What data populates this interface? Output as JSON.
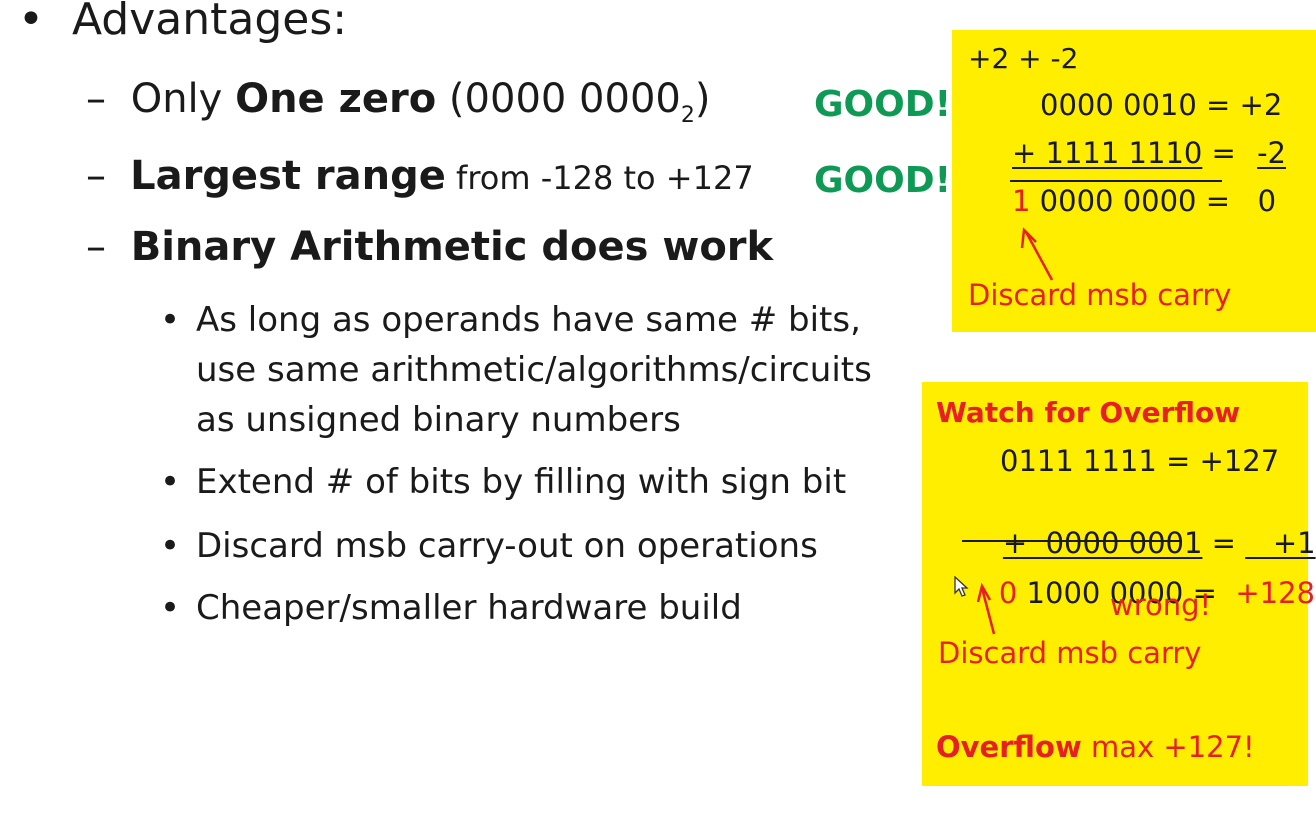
{
  "slide": {
    "heading": {
      "bullet": "•",
      "text": "Advantages:"
    },
    "dash": "–",
    "item1": {
      "pre": "Only ",
      "bold": "One zero",
      "rest": " (0000 0000",
      "subscript": "2",
      "close": ")"
    },
    "item2": {
      "bold": "Largest range",
      "rest": " from -128 to +127"
    },
    "item3": {
      "bold": "Binary Arithmetic does work"
    },
    "sub_bullet": "•",
    "sub1": [
      "As long as operands have same # bits,",
      "use same arithmetic/algorithms/circuits",
      "as unsigned binary numbers"
    ],
    "sub2": "Extend # of bits by filling with sign bit",
    "sub3": "Discard msb carry-out on operations",
    "sub4": "Cheaper/smaller hardware build",
    "good1": "GOOD!",
    "good2": "GOOD!"
  },
  "box1": {
    "title": "+2 + -2",
    "row1": "0000 0010 = +2",
    "row2": {
      "left": "+ 1111 1110",
      "eq": " = ",
      "right": "-2"
    },
    "row3": {
      "carry": "1",
      "rest": " 0000 0000 =   0"
    },
    "caption": "Discard msb carry"
  },
  "box2": {
    "title": "Watch for Overflow",
    "row1": "0111 1111 = +127",
    "row2": {
      "left": "+  0000 0001",
      "eq": " = ",
      "right": "   +1"
    },
    "row3": {
      "carry": "0",
      "mid": " 1000 0000 =  ",
      "result": "+128"
    },
    "wrong": "wrong!",
    "caption": "Discard msb carry",
    "footer": {
      "bold": "Overflow",
      "rest": " max +127!"
    }
  },
  "colors": {
    "good": "#0e9a55",
    "highlight": "#ffee00",
    "warning": "#e62020"
  },
  "icons": [
    "mouse-cursor-icon",
    "arrow-icon"
  ]
}
